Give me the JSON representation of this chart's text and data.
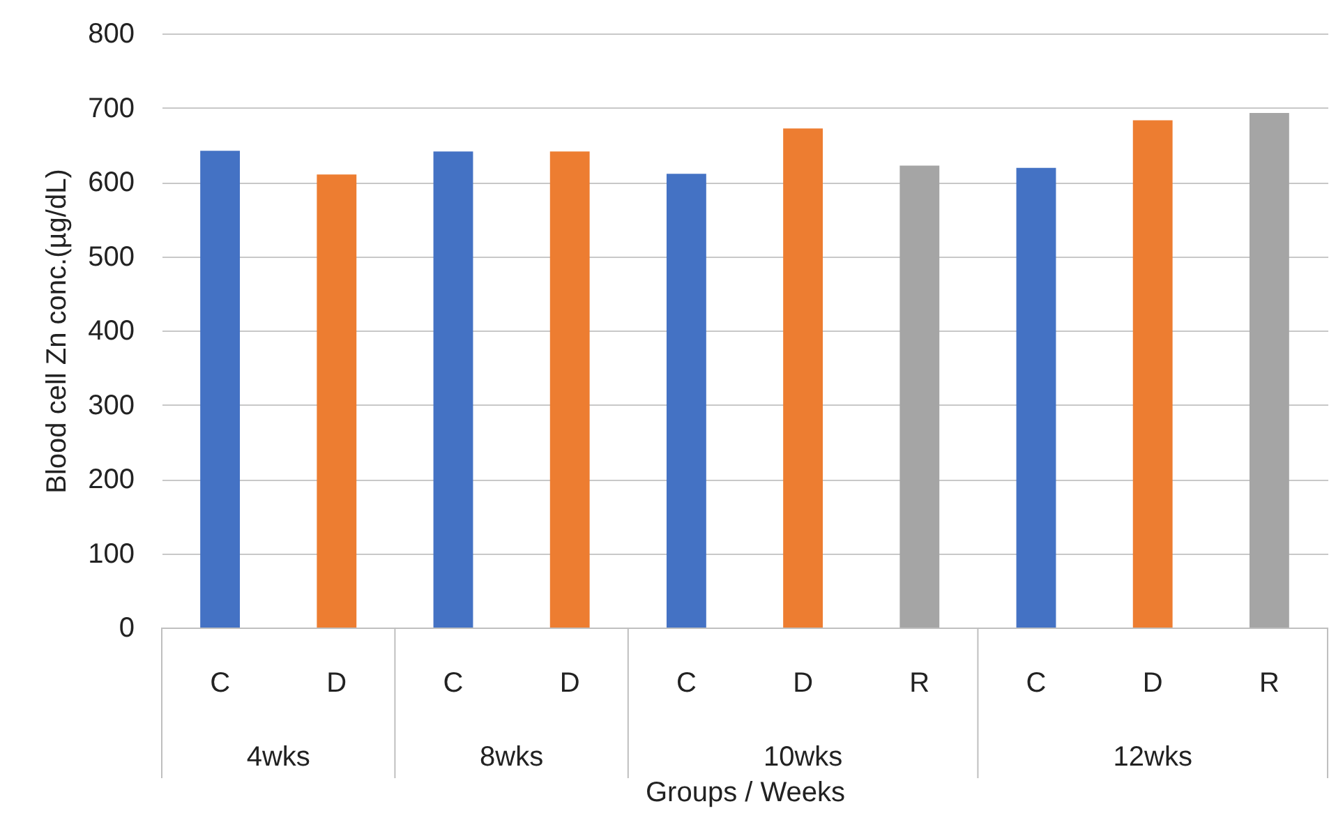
{
  "chart_data": {
    "type": "bar",
    "xlabel": "Groups / Weeks",
    "ylabel": "Blood cell Zn conc.(µg/dL)",
    "categories": [
      "4wks",
      "8wks",
      "10wks",
      "12wks"
    ],
    "series": [
      {
        "name": "C",
        "color": "#4472c4",
        "values": [
          642,
          641,
          611,
          619
        ]
      },
      {
        "name": "D",
        "color": "#ed7d31",
        "values": [
          610,
          641,
          672,
          683
        ]
      },
      {
        "name": "R",
        "color": "#a5a5a5",
        "values": [
          null,
          null,
          622,
          693
        ]
      }
    ],
    "ylim": [
      0,
      800
    ],
    "yticks": [
      0,
      100,
      200,
      300,
      400,
      500,
      600,
      700,
      800
    ],
    "grid": "y"
  }
}
